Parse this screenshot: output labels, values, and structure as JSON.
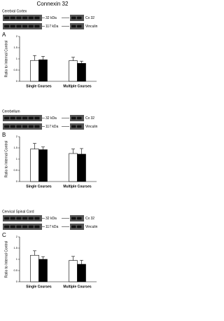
{
  "title": "Connexin 32",
  "chart_data": [
    {
      "type": "bar",
      "title": "Cerebral Cortex",
      "panel": "A",
      "blot_labels": [
        "32 kDa",
        "117 kDa"
      ],
      "protein_labels": [
        "Cx 32",
        "Vinculin"
      ],
      "ylabel": "Ratio to Internal Control",
      "categories": [
        "Single Courses",
        "Multiple Courses"
      ],
      "series": [
        {
          "color": "#ffffff",
          "values": [
            0.93,
            0.92
          ],
          "errors": [
            0.22,
            0.15
          ]
        },
        {
          "color": "#000000",
          "values": [
            0.96,
            0.8
          ],
          "errors": [
            0.15,
            0.1
          ]
        }
      ],
      "ylim": [
        0,
        2
      ],
      "yticks": [
        0,
        0.5,
        1,
        1.5,
        2
      ]
    },
    {
      "type": "bar",
      "title": "Cerebellum",
      "panel": "B",
      "blot_labels": [
        "32 kDa",
        "117 kDa"
      ],
      "protein_labels": [
        "Cx 32",
        "Vinculin"
      ],
      "ylabel": "Ratio to Internal Control",
      "categories": [
        "Single Courses",
        "Multiple Courses"
      ],
      "series": [
        {
          "color": "#ffffff",
          "values": [
            1.45,
            1.25
          ],
          "errors": [
            0.25,
            0.2
          ]
        },
        {
          "color": "#000000",
          "values": [
            1.42,
            1.22
          ],
          "errors": [
            0.12,
            0.25
          ]
        }
      ],
      "ylim": [
        0,
        2
      ],
      "yticks": [
        0,
        0.5,
        1,
        1.5,
        2
      ]
    },
    {
      "type": "bar",
      "title": "Cervical Spinal Cord",
      "panel": "C",
      "blot_labels": [
        "32 kDa",
        "117 kDa"
      ],
      "protein_labels": [
        "Cx 32",
        "Vinculin"
      ],
      "ylabel": "Ratio to Internal Control",
      "categories": [
        "Single Courses",
        "Multiple Courses"
      ],
      "series": [
        {
          "color": "#ffffff",
          "values": [
            1.18,
            0.95
          ],
          "errors": [
            0.2,
            0.18
          ]
        },
        {
          "color": "#000000",
          "values": [
            1.0,
            0.78
          ],
          "errors": [
            0.12,
            0.18
          ]
        }
      ],
      "ylim": [
        0,
        2
      ],
      "yticks": [
        0,
        0.5,
        1,
        1.5,
        2
      ]
    }
  ]
}
